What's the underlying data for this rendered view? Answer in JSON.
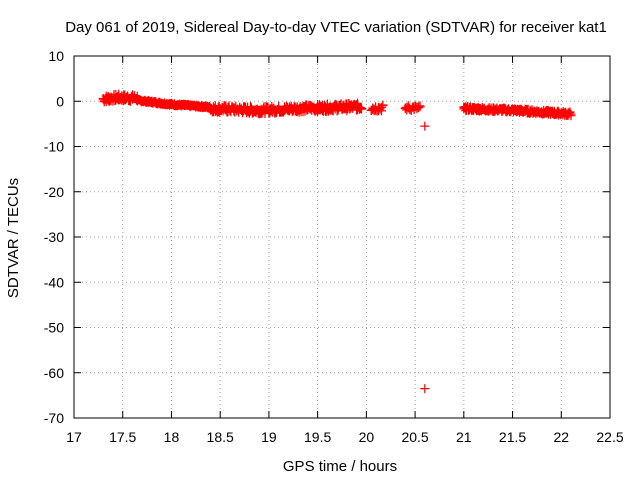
{
  "chart_data": {
    "type": "scatter",
    "title": "Day 061 of 2019, Sidereal Day-to-day VTEC variation (SDTVAR) for receiver kat1",
    "xlabel": "GPS time / hours",
    "ylabel": "SDTVAR / TECUs",
    "xlim": [
      17,
      22.5
    ],
    "ylim": [
      -70,
      10
    ],
    "xticks": [
      "17",
      "17.5",
      "18",
      "18.5",
      "19",
      "19.5",
      "20",
      "20.5",
      "21",
      "21.5",
      "22",
      "22.5"
    ],
    "yticks": [
      "10",
      "0",
      "-10",
      "-20",
      "-30",
      "-40",
      "-50",
      "-60",
      "-70"
    ],
    "grid": true,
    "marker": "plus",
    "color": "#ff0000",
    "series": [
      {
        "name": "kat1",
        "segments": [
          {
            "x_start": 17.3,
            "x_end": 17.65,
            "step": 0.01,
            "y_profile": [
              [
                17.3,
                0.5
              ],
              [
                17.45,
                0.8
              ],
              [
                17.65,
                0.7
              ]
            ],
            "y_spread": 1.6
          },
          {
            "x_start": 17.65,
            "x_end": 18.4,
            "step": 0.01,
            "y_profile": [
              [
                17.65,
                0.2
              ],
              [
                18.0,
                -0.7
              ],
              [
                18.4,
                -1.3
              ]
            ],
            "y_spread": 0.5
          },
          {
            "x_start": 18.4,
            "x_end": 19.95,
            "step": 0.01,
            "y_profile": [
              [
                18.4,
                -1.6
              ],
              [
                18.9,
                -2.0
              ],
              [
                19.3,
                -1.6
              ],
              [
                19.95,
                -1.2
              ]
            ],
            "y_spread": 1.6
          },
          {
            "x_start": 20.05,
            "x_end": 20.18,
            "step": 0.015,
            "y_profile": [
              [
                20.05,
                -1.5
              ],
              [
                20.18,
                -1.5
              ]
            ],
            "y_spread": 1.5
          },
          {
            "x_start": 20.4,
            "x_end": 20.55,
            "step": 0.015,
            "y_profile": [
              [
                20.4,
                -1.5
              ],
              [
                20.55,
                -1.5
              ]
            ],
            "y_spread": 1.2
          },
          {
            "x_start": 21.0,
            "x_end": 22.1,
            "step": 0.01,
            "y_profile": [
              [
                21.0,
                -1.6
              ],
              [
                21.5,
                -2.0
              ],
              [
                22.1,
                -2.8
              ]
            ],
            "y_spread": 0.9
          }
        ],
        "points": [
          {
            "x": 20.6,
            "y": -5.5
          },
          {
            "x": 20.6,
            "y": -63.5
          }
        ]
      }
    ]
  }
}
